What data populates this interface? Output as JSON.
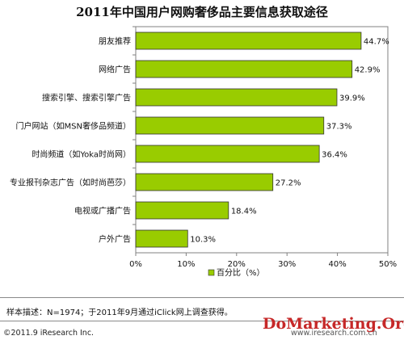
{
  "chart_data": {
    "type": "bar",
    "orientation": "horizontal",
    "title": "2011年中国用户网购奢侈品主要信息获取途径",
    "categories": [
      "朋友推荐",
      "网络广告",
      "搜索引擎、搜索引擎广告",
      "门户网站（如MSN奢侈品频道）",
      "时尚频道（如Yoka时尚网）",
      "专业报刊杂志广告（如时尚芭莎）",
      "电视或广播广告",
      "户外广告"
    ],
    "values": [
      44.7,
      42.9,
      39.9,
      37.3,
      36.4,
      27.2,
      18.4,
      10.3
    ],
    "value_labels": [
      "44.7%",
      "42.9%",
      "39.9%",
      "37.3%",
      "36.4%",
      "27.2%",
      "18.4%",
      "10.3%"
    ],
    "xlim": [
      0,
      50
    ],
    "x_ticks": [
      "0%",
      "10%",
      "20%",
      "30%",
      "40%",
      "50%"
    ],
    "legend": "百分比（%）",
    "legend_position": "bottom",
    "bar_color": "#99cc00",
    "grid": false
  },
  "footer": {
    "note": "样本描述：N=1974；于2011年9月通过iClick网上调查获得。",
    "copyright": "©2011.9 iResearch Inc.",
    "site": "www.iresearch.com.cn",
    "watermark": "DoMarketing.Org"
  }
}
